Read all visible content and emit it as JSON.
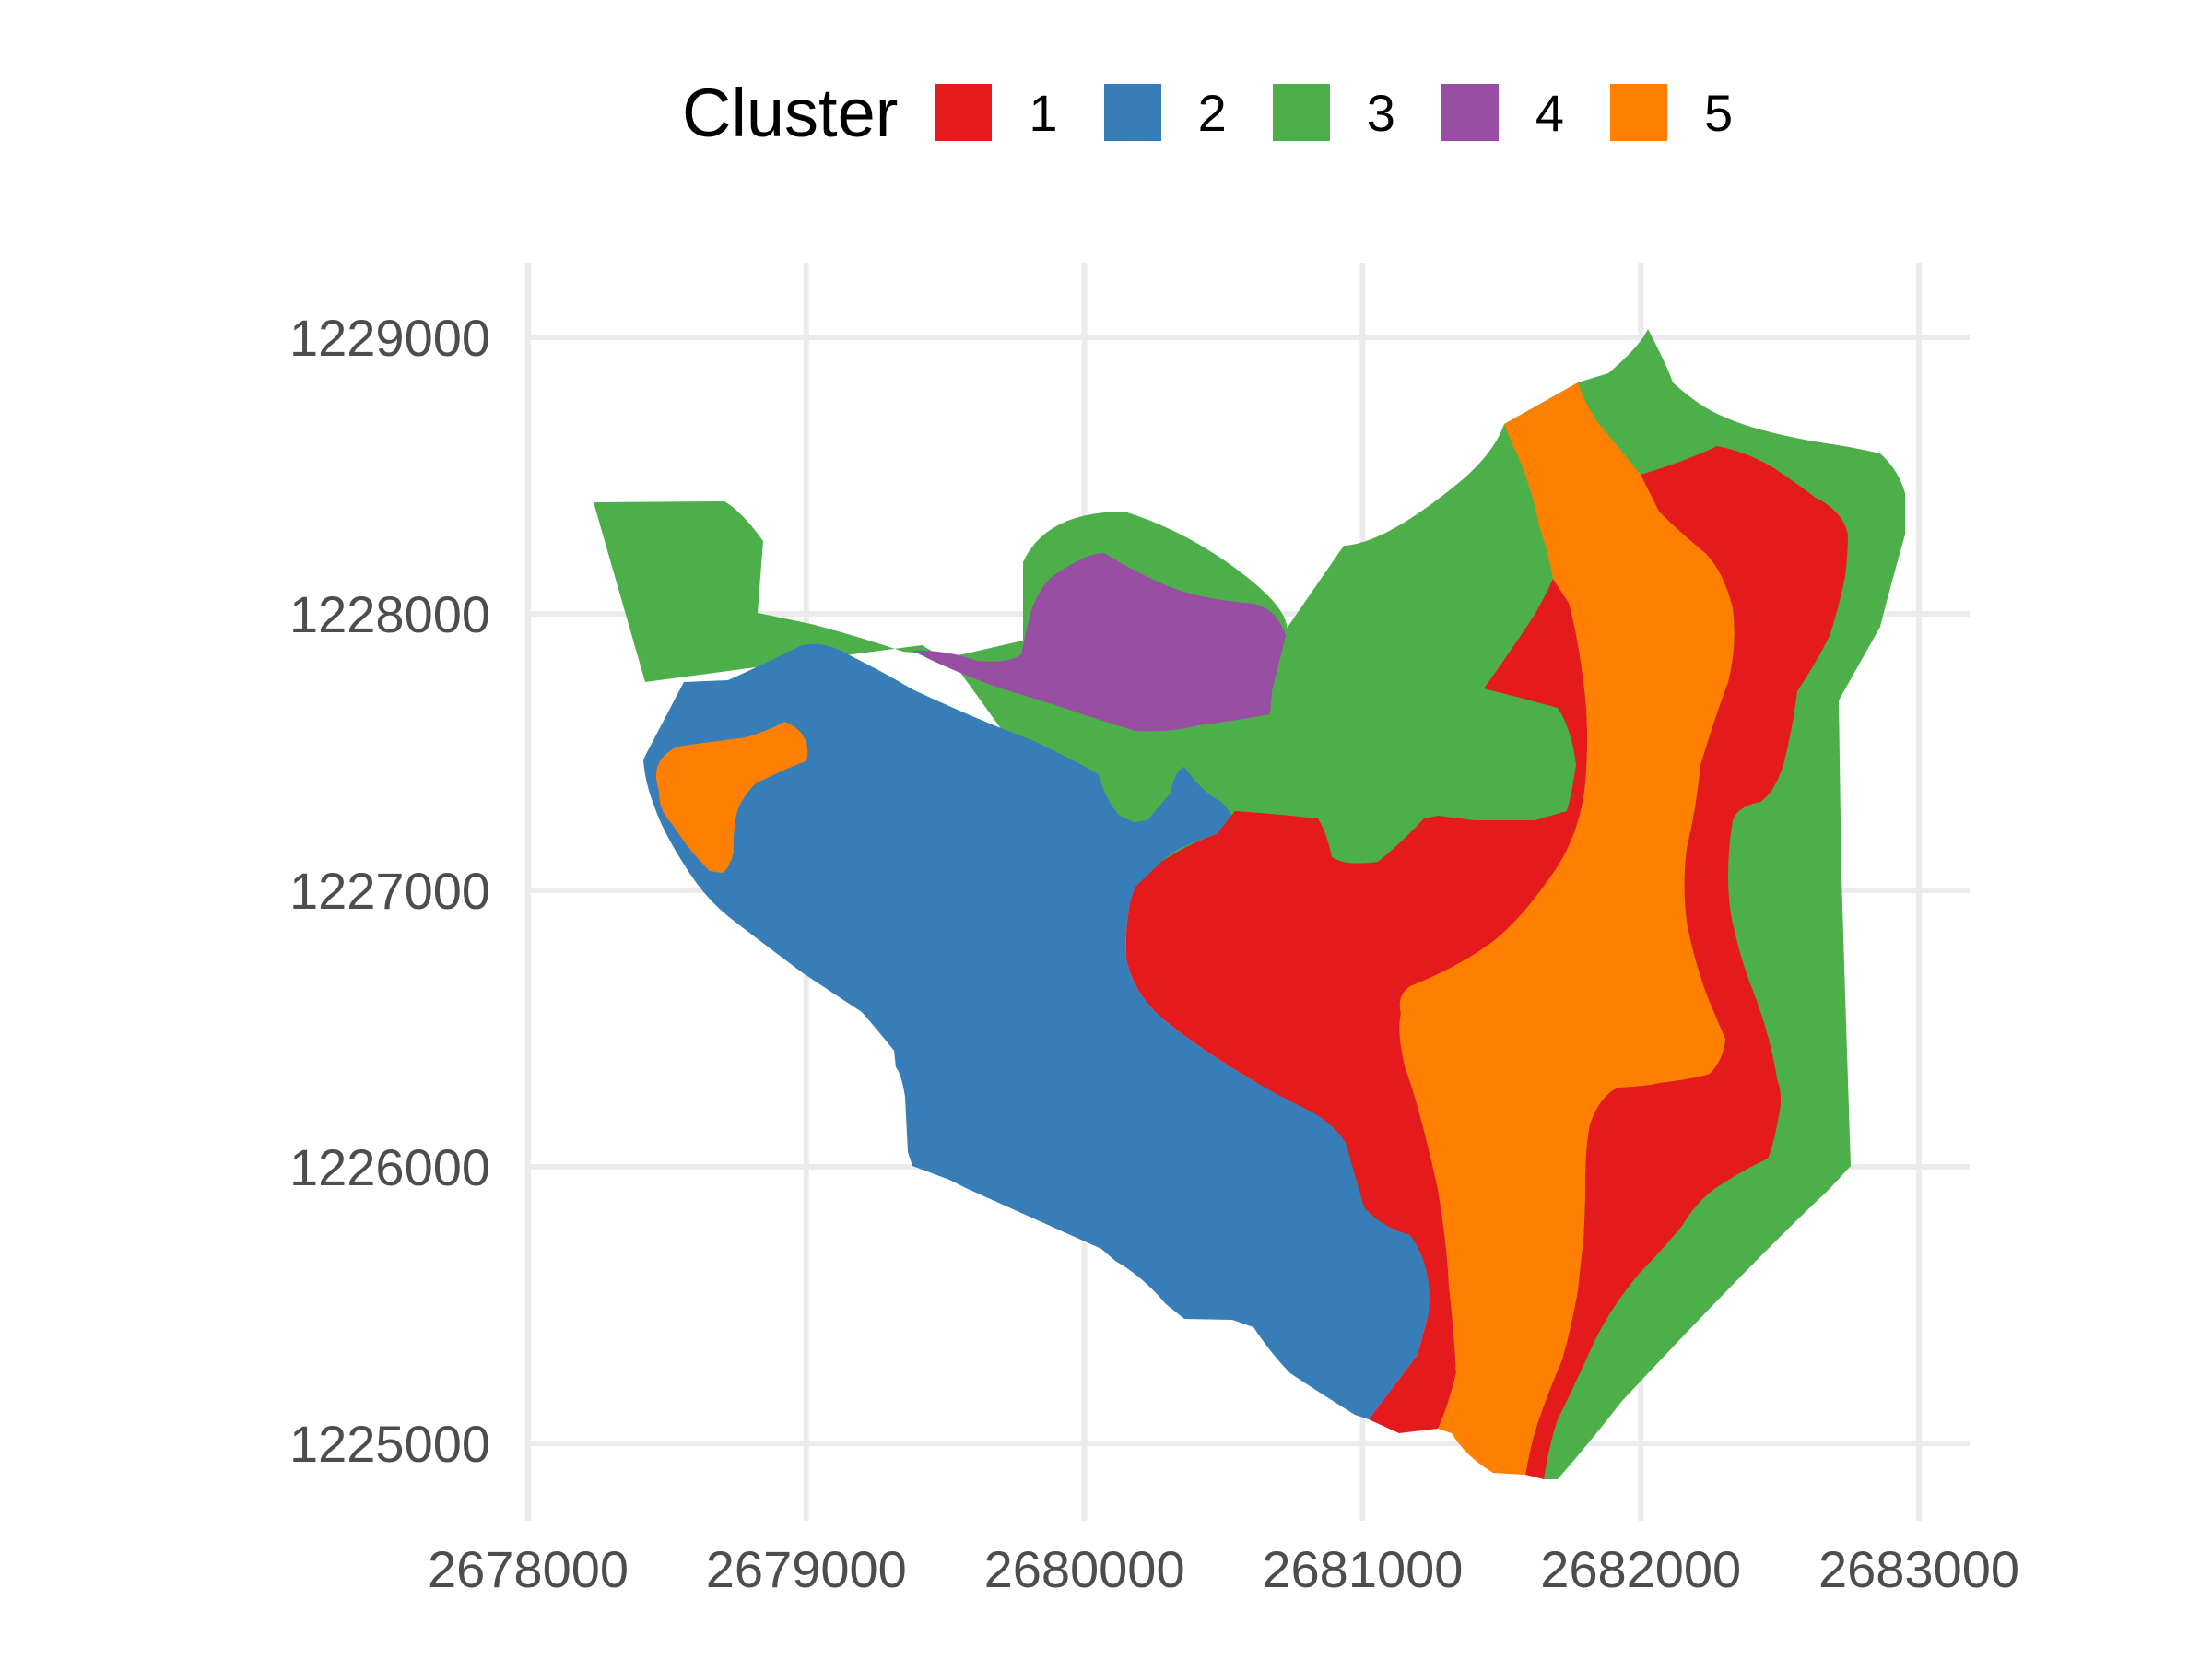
{
  "chart_data": {
    "type": "map",
    "legend": {
      "title": "Cluster",
      "position": "top",
      "items": [
        {
          "label": "1",
          "color": "#E41A1C"
        },
        {
          "label": "2",
          "color": "#377EB8"
        },
        {
          "label": "3",
          "color": "#4DAF4A"
        },
        {
          "label": "4",
          "color": "#984EA3"
        },
        {
          "label": "5",
          "color": "#FF7F00"
        }
      ]
    },
    "x_ticks": [
      "2678000",
      "2679000",
      "2680000",
      "2681000",
      "2682000",
      "2683000"
    ],
    "y_ticks": [
      "1229000",
      "1228000",
      "1227000",
      "1226000",
      "1225000"
    ],
    "xlim": [
      2678000,
      2683000
    ],
    "ylim": [
      1225000,
      1229000
    ],
    "grid": true
  }
}
